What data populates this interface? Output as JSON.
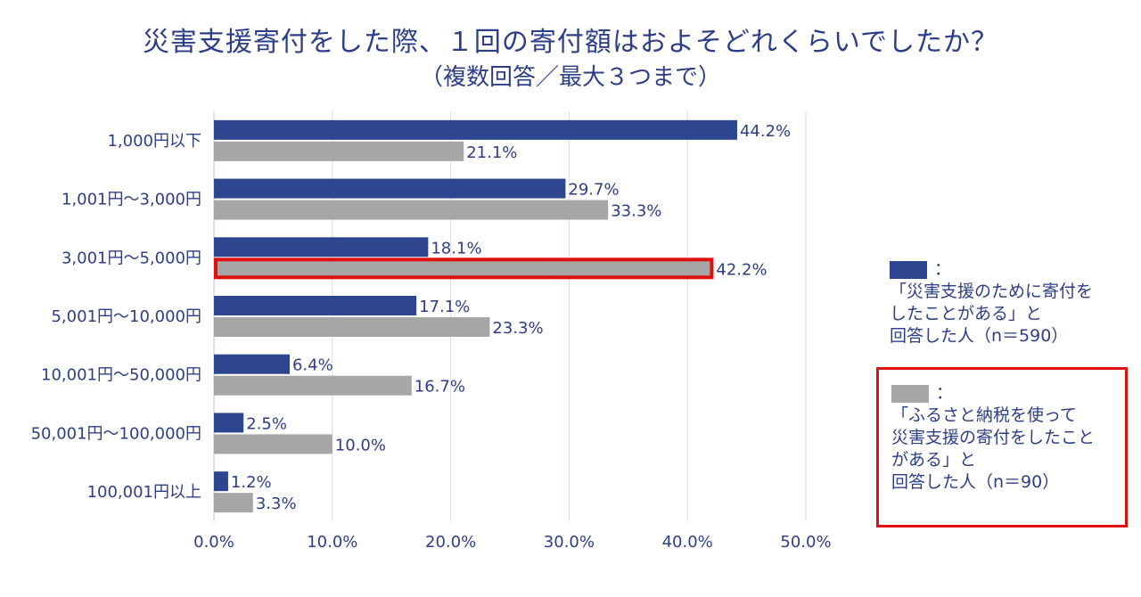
{
  "title": "災害支援寄付をした際、１回の寄付額はおよそどれくらいでしたか？",
  "subtitle": "（複数回答／最大３つまで）",
  "colors": {
    "series1": "#2e4690",
    "series2": "#a6a6a6",
    "highlight": "#e01010",
    "text": "#2c3e87",
    "grid": "#d9dbe8"
  },
  "chart_data": {
    "type": "bar",
    "orientation": "horizontal",
    "categories": [
      "1,000円以下",
      "1,001円〜3,000円",
      "3,001円〜5,000円",
      "5,001円〜10,000円",
      "10,001円〜50,000円",
      "50,001円〜100,000円",
      "100,001円以上"
    ],
    "series": [
      {
        "name": "「災害支援のために寄付をしたことがある」と回答した人（n=590）",
        "values": [
          44.2,
          29.7,
          18.1,
          17.1,
          6.4,
          2.5,
          1.2
        ]
      },
      {
        "name": "「ふるさと納税を使って災害支援の寄付をしたことがある」と回答した人（n=90）",
        "values": [
          21.1,
          33.3,
          42.2,
          23.3,
          16.7,
          10.0,
          3.3
        ]
      }
    ],
    "value_labels": [
      [
        "44.2%",
        "29.7%",
        "18.1%",
        "17.1%",
        "6.4%",
        "2.5%",
        "1.2%"
      ],
      [
        "21.1%",
        "33.3%",
        "42.2%",
        "23.3%",
        "16.7%",
        "10.0%",
        "3.3%"
      ]
    ],
    "xticks": [
      "0.0%",
      "10.0%",
      "20.0%",
      "30.0%",
      "40.0%",
      "50.0%"
    ],
    "xlim": [
      0,
      50
    ],
    "highlighted": {
      "series": 1,
      "category": 2
    },
    "grid": true
  },
  "legend": [
    {
      "marker": "：",
      "text": "「災害支援のために寄付を\nしたことがある」と\n回答した人（n＝590）"
    },
    {
      "marker": "：",
      "text": "「ふるさと納税を使って\n災害支援の寄付をしたこと\nがある」と\n回答した人（n＝90）"
    }
  ]
}
